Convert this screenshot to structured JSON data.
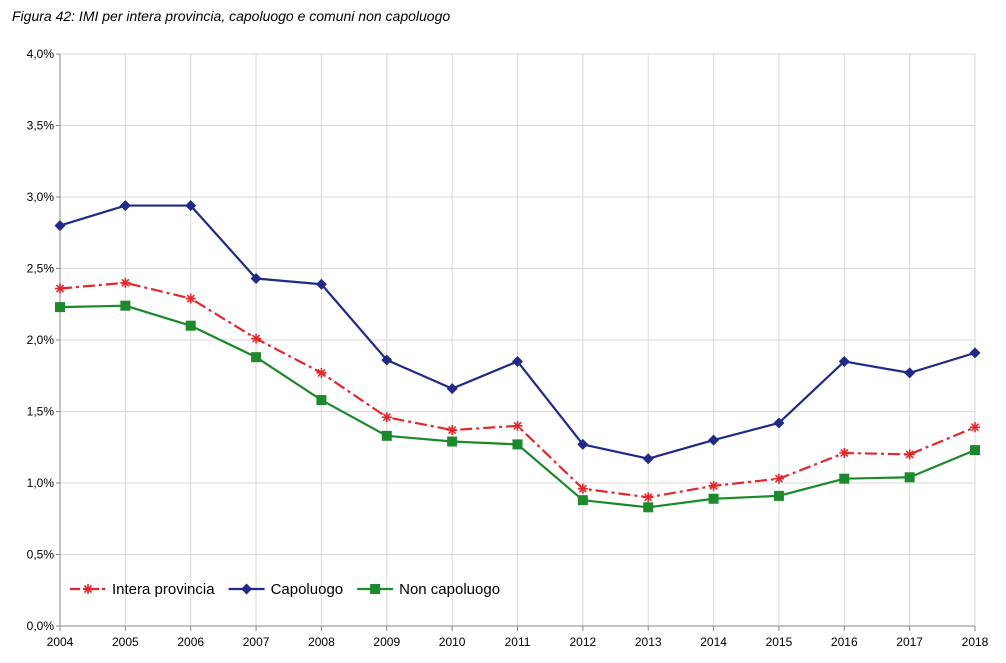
{
  "figure": {
    "title": "Figura 42: IMI per intera provincia, capoluogo e comuni non capoluogo"
  },
  "chart_data": {
    "type": "line",
    "title": "Figura 42: IMI per intera provincia, capoluogo e comuni non capoluogo",
    "xlabel": "",
    "ylabel": "",
    "categories": [
      "2004",
      "2005",
      "2006",
      "2007",
      "2008",
      "2009",
      "2010",
      "2011",
      "2012",
      "2013",
      "2014",
      "2015",
      "2016",
      "2017",
      "2018"
    ],
    "ylim": [
      0,
      4.0
    ],
    "yticks": [
      0,
      0.5,
      1.0,
      1.5,
      2.0,
      2.5,
      3.0,
      3.5,
      4.0
    ],
    "ytick_labels": [
      "0,0%",
      "0,5%",
      "1,0%",
      "1,5%",
      "2,0%",
      "2,5%",
      "3,0%",
      "3,5%",
      "4,0%"
    ],
    "grid": true,
    "legend_position": "bottom-left",
    "series": [
      {
        "name": "Intera provincia",
        "color": "#e8262a",
        "marker": "star",
        "dash": "dashdot",
        "values": [
          2.36,
          2.4,
          2.29,
          2.01,
          1.77,
          1.46,
          1.37,
          1.4,
          0.96,
          0.9,
          0.98,
          1.03,
          1.21,
          1.2,
          1.39
        ]
      },
      {
        "name": "Capoluogo",
        "color": "#1f2a8a",
        "marker": "diamond",
        "dash": "solid",
        "values": [
          2.8,
          2.94,
          2.94,
          2.43,
          2.39,
          1.86,
          1.66,
          1.85,
          1.27,
          1.17,
          1.3,
          1.42,
          1.85,
          1.77,
          1.91
        ]
      },
      {
        "name": "Non capoluogo",
        "color": "#1a8a2a",
        "marker": "square",
        "dash": "solid",
        "values": [
          2.23,
          2.24,
          2.1,
          1.88,
          1.58,
          1.33,
          1.29,
          1.27,
          0.88,
          0.83,
          0.89,
          0.91,
          1.03,
          1.04,
          1.23
        ]
      }
    ]
  }
}
